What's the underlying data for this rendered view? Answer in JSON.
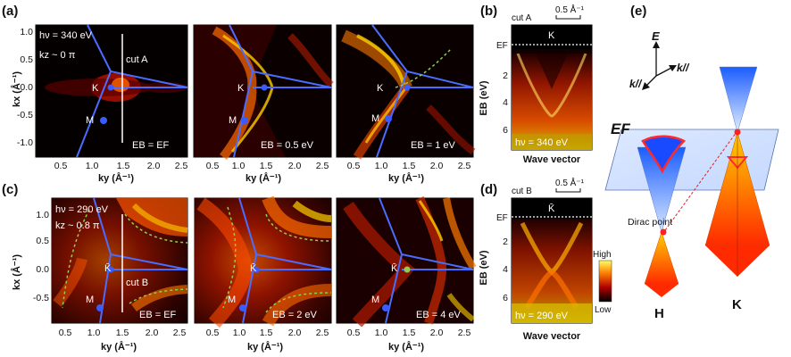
{
  "panel_labels": {
    "a": "(a)",
    "b": "(b)",
    "c": "(c)",
    "d": "(d)",
    "e": "(e)"
  },
  "a": {
    "hv": "hν = 340 eV",
    "kz": "kz ~ 0 π",
    "cut": "cut A",
    "K": "K",
    "M": "M",
    "eb": [
      "EB = EF",
      "EB = 0.5 eV",
      "EB = 1 eV"
    ],
    "ylabel": "kx (Å⁻¹)",
    "xlabel": "ky (Å⁻¹)",
    "yticks": [
      "1.0",
      "0.5",
      "0.0",
      "-0.5",
      "-1.0"
    ],
    "xticks": [
      "0.5",
      "1.0",
      "1.5",
      "2.0",
      "2.5"
    ]
  },
  "c": {
    "hv": "hν = 290 eV",
    "kz": "kz ~ 0.8 π",
    "cut": "cut B",
    "K": "K̄",
    "M": "M",
    "eb": [
      "EB = EF",
      "EB = 2 eV",
      "EB = 4 eV"
    ],
    "ylabel": "kx (Å⁻¹)",
    "xlabel": "ky (Å⁻¹)",
    "yticks": [
      "1.0",
      "0.5",
      "0.0",
      "-0.5"
    ],
    "xticks": [
      "0.5",
      "1.0",
      "1.5",
      "2.0",
      "2.5"
    ]
  },
  "b": {
    "cut": "cut A",
    "scale": "0.5 Å⁻¹",
    "ef": "EF",
    "K": "K",
    "ylabel": "EB (eV)",
    "yticks": [
      "2",
      "4",
      "6"
    ],
    "hv": "hν = 340 eV",
    "xlabel": "Wave vector"
  },
  "d": {
    "cut": "cut B",
    "scale": "0.5 Å⁻¹",
    "ef": "EF",
    "K": "K̄",
    "ylabel": "EB (eV)",
    "yticks": [
      "2",
      "4",
      "6"
    ],
    "hv": "hν = 290 eV",
    "xlabel": "Wave vector",
    "colorbar_high": "High",
    "colorbar_low": "Low"
  },
  "e": {
    "E": "E",
    "k1": "k//",
    "k2": "k//",
    "EF": "EF",
    "dirac": "Dirac point",
    "H": "H",
    "K": "K"
  }
}
